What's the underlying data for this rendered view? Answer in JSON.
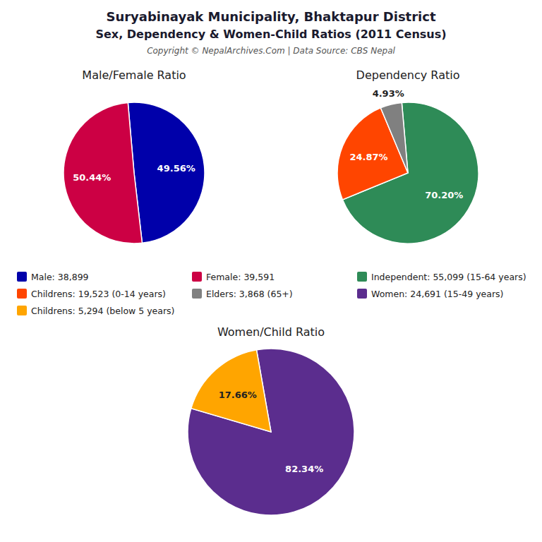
{
  "title": "Suryabinayak Municipality, Bhaktapur District",
  "subtitle": "Sex, Dependency & Women-Child Ratios (2011 Census)",
  "annotations": [
    "Copyright © NepalArchives.Com | Data Source: CBS Nepal"
  ],
  "chart_data": [
    {
      "type": "pie",
      "title": "Male/Female Ratio",
      "categories": [
        "Male: 38,899",
        "Female: 39,591"
      ],
      "values": [
        49.56,
        50.44
      ],
      "value_labels": [
        "49.56%",
        "50.44%"
      ],
      "colors": [
        "#0000AA",
        "#CC0044"
      ],
      "data_labels": true,
      "legend": "bottom"
    },
    {
      "type": "pie",
      "title": "Dependency Ratio",
      "categories": [
        "Independent: 55,099 (15-64 years)",
        "Childrens: 19,523 (0-14 years)",
        "Elders: 3,868 (65+)"
      ],
      "values": [
        70.2,
        24.87,
        4.93
      ],
      "value_labels": [
        "70.20%",
        "24.87%",
        "4.93%"
      ],
      "colors": [
        "#2E8B57",
        "#FF4500",
        "#808080"
      ],
      "data_labels": true,
      "legend": "bottom"
    },
    {
      "type": "pie",
      "title": "Women/Child Ratio",
      "categories": [
        "Women: 24,691 (15-49 years)",
        "Childrens: 5,294 (below 5 years)"
      ],
      "values": [
        82.34,
        17.66
      ],
      "value_labels": [
        "82.34%",
        "17.66%"
      ],
      "colors": [
        "#5B2D8E",
        "#FFA500"
      ],
      "data_labels": true,
      "legend": "bottom"
    }
  ]
}
